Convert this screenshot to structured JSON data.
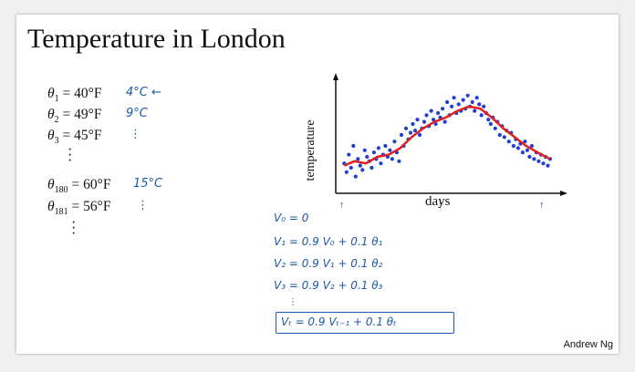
{
  "title": "Temperature in London",
  "author": "Andrew Ng",
  "observations": [
    {
      "symbol": "θ",
      "sub": "1",
      "value": "= 40°F",
      "note": "4°C ←"
    },
    {
      "symbol": "θ",
      "sub": "2",
      "value": "= 49°F",
      "note": "9°C"
    },
    {
      "symbol": "θ",
      "sub": "3",
      "value": "= 45°F",
      "note": "⋮"
    },
    {
      "symbol": "θ",
      "sub": "180",
      "value": "= 60°F",
      "note": "15°C"
    },
    {
      "symbol": "θ",
      "sub": "181",
      "value": "= 56°F",
      "note": "⋮"
    }
  ],
  "formulas": [
    "V₀ = 0",
    "V₁ = 0.9 V₀   + 0.1 θ₁",
    "V₂ = 0.9 V₁   + 0.1 θ₂",
    "V₃ = 0.9 V₂   + 0.1 θ₃",
    "Vₜ = 0.9 Vₜ₋₁   + 0.1 θₜ"
  ],
  "colors": {
    "points": "#1f3fd0",
    "average": "#e0201e",
    "ink": "#1f5aa6"
  },
  "chart_data": {
    "type": "scatter",
    "xlabel": "days",
    "ylabel": "temperature",
    "grid": false,
    "series": [
      {
        "kind": "scatter",
        "color": "#1f3fd0",
        "x": [
          2,
          6,
          10,
          14,
          18,
          22,
          26,
          30,
          34,
          38,
          42,
          46,
          50,
          54,
          58,
          62,
          66,
          70,
          74,
          78,
          82,
          86,
          90,
          94,
          98,
          102,
          106,
          110,
          114,
          118,
          122,
          126,
          130,
          134,
          138,
          142,
          146,
          150,
          154,
          158,
          162,
          166,
          170,
          174,
          178,
          182,
          186,
          190,
          194,
          198,
          202,
          206,
          210,
          214,
          218,
          222,
          226,
          230,
          234,
          238,
          242,
          246,
          250,
          254,
          258,
          262,
          266,
          270,
          274,
          278,
          282,
          286,
          290,
          294,
          298,
          302,
          306,
          310,
          314,
          318,
          322,
          326,
          330,
          334,
          338,
          342,
          346,
          350,
          354,
          358,
          362
        ],
        "y": [
          42,
          38,
          46,
          40,
          50,
          36,
          44,
          41,
          39,
          48,
          45,
          43,
          40,
          47,
          44,
          49,
          42,
          46,
          50,
          45,
          48,
          44,
          52,
          47,
          43,
          55,
          50,
          58,
          53,
          56,
          60,
          57,
          62,
          55,
          58,
          61,
          64,
          59,
          66,
          62,
          60,
          65,
          63,
          67,
          61,
          70,
          64,
          68,
          72,
          65,
          69,
          66,
          71,
          67,
          73,
          68,
          70,
          66,
          72,
          69,
          64,
          68,
          65,
          62,
          60,
          63,
          58,
          61,
          55,
          59,
          54,
          57,
          52,
          56,
          50,
          53,
          49,
          51,
          47,
          52,
          48,
          45,
          50,
          44,
          47,
          43,
          46,
          42,
          45,
          41,
          44
        ]
      },
      {
        "kind": "line",
        "color": "#e0201e",
        "x": [
          2,
          20,
          40,
          60,
          80,
          100,
          120,
          140,
          160,
          180,
          200,
          220,
          240,
          260,
          280,
          300,
          320,
          340,
          362
        ],
        "y": [
          41,
          43,
          42,
          45,
          46,
          49,
          54,
          58,
          61,
          63,
          66,
          68,
          67,
          63,
          58,
          54,
          50,
          47,
          44
        ]
      }
    ],
    "xlim": [
      0,
      370
    ],
    "ylim": [
      30,
      80
    ]
  }
}
